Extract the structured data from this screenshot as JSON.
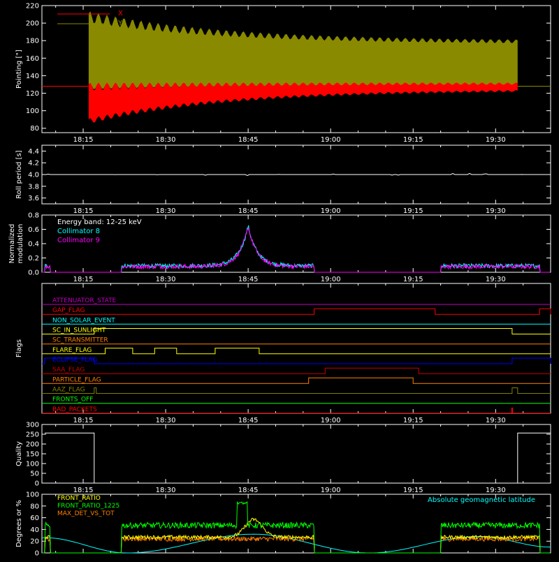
{
  "colors": {
    "background": "#000000",
    "axis": "#ffffff",
    "red": "#ff0000",
    "olive": "#8a8a00",
    "cyan": "#00ffff",
    "magenta": "#ff00ff",
    "yellow": "#ffff00",
    "blue": "#0000ff",
    "orange": "#ff8000",
    "green": "#00ff00",
    "darkred": "#cc0000",
    "darkolive": "#808000",
    "purple": "#c000c0"
  },
  "time_ticks": [
    "18:15",
    "18:30",
    "18:45",
    "19:00",
    "19:15",
    "19:30"
  ],
  "chart_data": [
    {
      "id": "pointing",
      "type": "line",
      "ylabel": "Pointing [\"]",
      "ylim": [
        75,
        220
      ],
      "yticks": [
        "80",
        "100",
        "120",
        "140",
        "160",
        "180",
        "200",
        "220"
      ],
      "ytick_values": [
        80,
        100,
        120,
        140,
        160,
        180,
        200,
        220
      ],
      "xticks": [
        "18:15",
        "18:30",
        "18:45",
        "19:00",
        "19:15",
        "19:30"
      ],
      "legend_placement": "top-left",
      "series": [
        {
          "name": "X",
          "color": "#ff0000",
          "baseline": 128,
          "start": "18:16",
          "end": "19:34",
          "upper_start": 128,
          "lower_start": 88,
          "upper_end": 132,
          "lower_end": 124
        },
        {
          "name": "Y",
          "color": "#8a8a00",
          "baseline": 128,
          "start": "18:16",
          "end": "19:34",
          "upper_start": 207,
          "lower_start": 128,
          "upper_end": 178,
          "lower_end": 131
        }
      ]
    },
    {
      "id": "roll_period",
      "type": "line",
      "ylabel": "Roll period [s]",
      "ylim": [
        3.5,
        4.5
      ],
      "yticks": [
        "3.6",
        "3.8",
        "4.0",
        "4.2",
        "4.4"
      ],
      "ytick_values": [
        3.6,
        3.8,
        4.0,
        4.2,
        4.4
      ],
      "xticks": [
        "18:15",
        "18:30",
        "18:45",
        "19:00",
        "19:15",
        "19:30"
      ],
      "series": [
        {
          "name": "",
          "color": "#ffffff",
          "value": 4.0
        }
      ]
    },
    {
      "id": "modulation",
      "type": "line",
      "ylabel": "Normalized modulation",
      "ylim": [
        0,
        0.8
      ],
      "yticks": [
        "0.0",
        "0.2",
        "0.4",
        "0.6",
        "0.8"
      ],
      "ytick_values": [
        0.0,
        0.2,
        0.4,
        0.6,
        0.8
      ],
      "xticks": [
        "18:15",
        "18:30",
        "18:45",
        "19:00",
        "19:15",
        "19:30"
      ],
      "annotation": "Energy band: 12-25 keV",
      "legend_placement": "top-left",
      "series": [
        {
          "name": "Collimator 8",
          "color": "#00ffff"
        },
        {
          "name": "Collimator 9",
          "color": "#ff00ff"
        }
      ],
      "data_intervals": [
        [
          "18:08",
          "18:09"
        ],
        [
          "18:22",
          "18:57"
        ],
        [
          "19:20",
          "19:38"
        ]
      ],
      "base_level": 0.09,
      "peak": {
        "time": "18:45",
        "value": 0.65
      }
    },
    {
      "id": "flags",
      "type": "line",
      "ylabel": "Flags",
      "xticks": [
        "18:15",
        "18:30",
        "18:45",
        "19:00",
        "19:15",
        "19:30"
      ],
      "series": [
        {
          "name": "ATTENUATOR_STATE",
          "color": "#c000c0",
          "segments": []
        },
        {
          "name": "GAP_FLAG",
          "color": "#ff0000",
          "segments": [
            [
              "18:57",
              "19:19"
            ],
            [
              "19:38",
              "19:40"
            ]
          ]
        },
        {
          "name": "NON_SOLAR_EVENT",
          "color": "#00ffff",
          "segments": []
        },
        {
          "name": "SC_IN_SUNLIGHT",
          "color": "#ffff00",
          "segments": [
            [
              "18:17",
              "19:33"
            ]
          ]
        },
        {
          "name": "SC_TRANSMITTER",
          "color": "#ff8000",
          "segments": []
        },
        {
          "name": "FLARE_FLAG",
          "color": "#ffff00",
          "segments": [
            [
              "18:19",
              "18:24"
            ],
            [
              "18:28",
              "18:32"
            ],
            [
              "18:39",
              "18:47"
            ]
          ]
        },
        {
          "name": "ECLIPSE_FLAG",
          "color": "#0000ff",
          "segments": [
            [
              "18:08",
              "18:17"
            ],
            [
              "19:33",
              "19:40"
            ]
          ]
        },
        {
          "name": "SAA_FLAG",
          "color": "#cc0000",
          "segments": [
            [
              "18:59",
              "19:16"
            ]
          ]
        },
        {
          "name": "PARTICLE_FLAG",
          "color": "#ff8000",
          "segments": [
            [
              "18:56",
              "19:15"
            ]
          ]
        },
        {
          "name": "AAZ_FLAG",
          "color": "#808000",
          "segments": [
            [
              "18:17",
              "18:17"
            ],
            [
              "19:33",
              "19:34"
            ]
          ]
        },
        {
          "name": "FRONTS_OFF",
          "color": "#00ff00",
          "segments": []
        },
        {
          "name": "BAD_PACKETS",
          "color": "#ff0000",
          "segments": [],
          "spikes": [
            "19:33"
          ]
        }
      ]
    },
    {
      "id": "quality",
      "type": "line",
      "ylabel": "Quality",
      "ylim": [
        0,
        300
      ],
      "yticks": [
        "0",
        "50",
        "100",
        "150",
        "200",
        "250",
        "300"
      ],
      "ytick_values": [
        0,
        50,
        100,
        150,
        200,
        250,
        300
      ],
      "xticks": [
        "18:15",
        "18:30",
        "18:45",
        "19:00",
        "19:15",
        "19:30"
      ],
      "series": [
        {
          "name": "",
          "color": "#ffffff",
          "steps": [
            [
              "18:08",
              256
            ],
            [
              "18:17",
              256
            ],
            [
              "18:17",
              0
            ],
            [
              "19:34",
              0
            ],
            [
              "19:34",
              256
            ],
            [
              "19:40",
              256
            ]
          ]
        }
      ]
    },
    {
      "id": "front_ratio",
      "type": "line",
      "ylabel": "Degrees or %",
      "ylim": [
        0,
        100
      ],
      "yticks": [
        "0",
        "20",
        "40",
        "60",
        "80",
        "100"
      ],
      "ytick_values": [
        0,
        20,
        40,
        60,
        80,
        100
      ],
      "legend_placement": "top-left",
      "annotation": "Absolute geomagnetic latitude",
      "series": [
        {
          "name": "FRONT_RATIO",
          "color": "#ffff00"
        },
        {
          "name": "FRONT_RATIO_1225",
          "color": "#00ff00"
        },
        {
          "name": "MAX_DET_VS_TOT",
          "color": "#ff8000"
        },
        {
          "name": "Absolute geomagnetic latitude",
          "color": "#00ffff"
        }
      ],
      "geomagnetic_latitude": [
        [
          "18:08",
          26
        ],
        [
          "18:23",
          0
        ],
        [
          "18:46",
          32
        ],
        [
          "19:07",
          0
        ],
        [
          "19:27",
          28
        ],
        [
          "19:40",
          10
        ]
      ],
      "data_intervals": [
        [
          "18:08",
          "18:09"
        ],
        [
          "18:22",
          "18:57"
        ],
        [
          "19:20",
          "19:38"
        ]
      ],
      "front_ratio_1225_level": 47,
      "front_ratio_level": 27,
      "max_det_level": 24,
      "front_ratio_1225_spike": {
        "start": "18:43",
        "end": "18:44",
        "value": 85
      }
    }
  ]
}
